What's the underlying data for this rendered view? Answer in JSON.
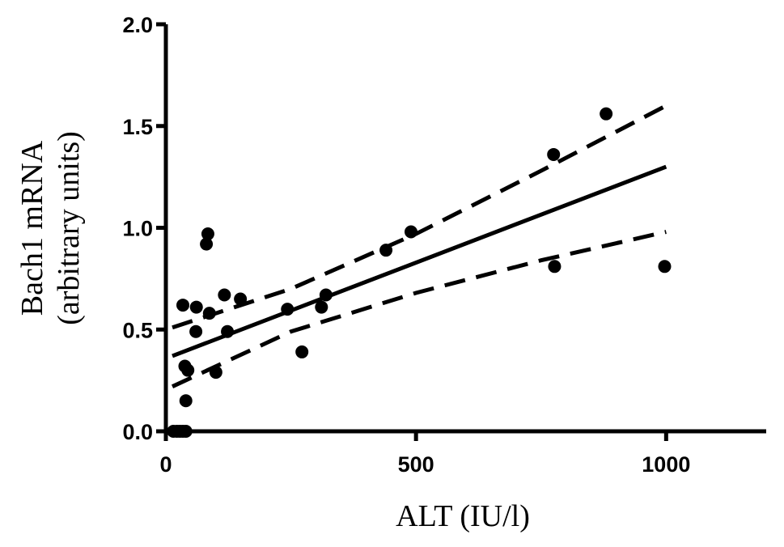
{
  "chart_data": {
    "type": "scatter",
    "title": "",
    "xlabel": "ALT (IU/l)",
    "ylabel_line1": "Bach1 mRNA",
    "ylabel_line2": "(arbitrary units)",
    "xlim": [
      0,
      1200
    ],
    "ylim": [
      0,
      2.0
    ],
    "xticks": [
      "0",
      "500",
      "1000"
    ],
    "xtick_values": [
      0,
      500,
      1000
    ],
    "yticks": [
      "0.0",
      "0.5",
      "1.0",
      "1.5",
      "2.0"
    ],
    "ytick_values": [
      0,
      0.5,
      1.0,
      1.5,
      2.0
    ],
    "grid": false,
    "points": [
      [
        15,
        0
      ],
      [
        22,
        0
      ],
      [
        28,
        0
      ],
      [
        34,
        0
      ],
      [
        40,
        0
      ],
      [
        40,
        0.15
      ],
      [
        38,
        0.32
      ],
      [
        44,
        0.3
      ],
      [
        34,
        0.62
      ],
      [
        61,
        0.61
      ],
      [
        60,
        0.49
      ],
      [
        84,
        0.97
      ],
      [
        81,
        0.92
      ],
      [
        87,
        0.58
      ],
      [
        100,
        0.29
      ],
      [
        117,
        0.67
      ],
      [
        123,
        0.49
      ],
      [
        149,
        0.65
      ],
      [
        243,
        0.6
      ],
      [
        272,
        0.39
      ],
      [
        311,
        0.61
      ],
      [
        320,
        0.67
      ],
      [
        440,
        0.89
      ],
      [
        490,
        0.98
      ],
      [
        775,
        1.36
      ],
      [
        777,
        0.81
      ],
      [
        880,
        1.56
      ],
      [
        997,
        0.81
      ]
    ],
    "regression": {
      "x": [
        13,
        1000
      ],
      "y": [
        0.37,
        1.3
      ]
    },
    "ci_upper": {
      "x": [
        13,
        250,
        500,
        750,
        1000
      ],
      "y": [
        0.51,
        0.7,
        0.97,
        1.28,
        1.6
      ]
    },
    "ci_lower": {
      "x": [
        13,
        250,
        500,
        750,
        1000
      ],
      "y": [
        0.22,
        0.49,
        0.68,
        0.84,
        0.98
      ]
    }
  }
}
